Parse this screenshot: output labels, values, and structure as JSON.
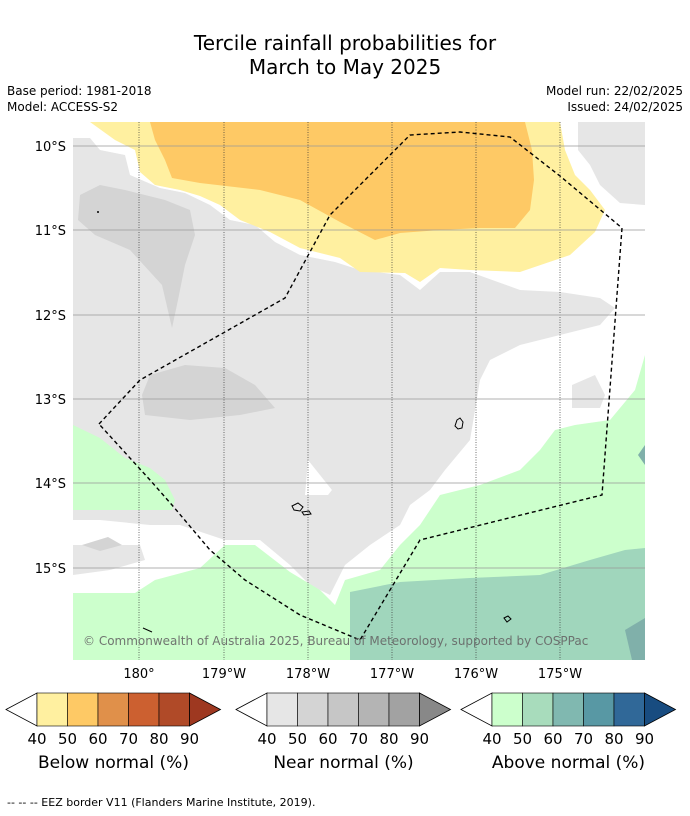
{
  "title": {
    "line1": "Tercile rainfall probabilities for",
    "line2": "March to May 2025"
  },
  "meta": {
    "base_period": "Base period: 1981-2018",
    "model": "Model: ACCESS-S2",
    "model_run": "Model run: 22/02/2025",
    "issued": "Issued: 24/02/2025"
  },
  "map": {
    "lat_labels": [
      "10°S",
      "11°S",
      "12°S",
      "13°S",
      "14°S",
      "15°S"
    ],
    "lon_labels": [
      "180°",
      "179°W",
      "178°W",
      "177°W",
      "176°W",
      "175°W"
    ],
    "credit": "© Commonwealth of Australia 2025, Bureau of Meteorology, supported by COSPPac"
  },
  "colorbars": [
    {
      "label": "Below normal (%)",
      "ticks": [
        "40",
        "50",
        "60",
        "70",
        "80",
        "90"
      ],
      "colors": [
        "#fff0a0",
        "#fec965",
        "#e0904a",
        "#cc6030",
        "#b04a28",
        "#9e3820"
      ]
    },
    {
      "label": "Near normal (%)",
      "ticks": [
        "40",
        "50",
        "60",
        "70",
        "80",
        "90"
      ],
      "colors": [
        "#e6e6e6",
        "#d4d4d4",
        "#c6c6c6",
        "#b4b4b4",
        "#a2a2a2",
        "#888888"
      ]
    },
    {
      "label": "Above normal (%)",
      "ticks": [
        "40",
        "50",
        "60",
        "70",
        "80",
        "90"
      ],
      "colors": [
        "#ccffcc",
        "#a8dcbc",
        "#80b8b0",
        "#5898a4",
        "#306898",
        "#184c80"
      ]
    }
  ],
  "footnote": "--  --  -- EEZ border V11 (Flanders Marine Institute, 2019)."
}
